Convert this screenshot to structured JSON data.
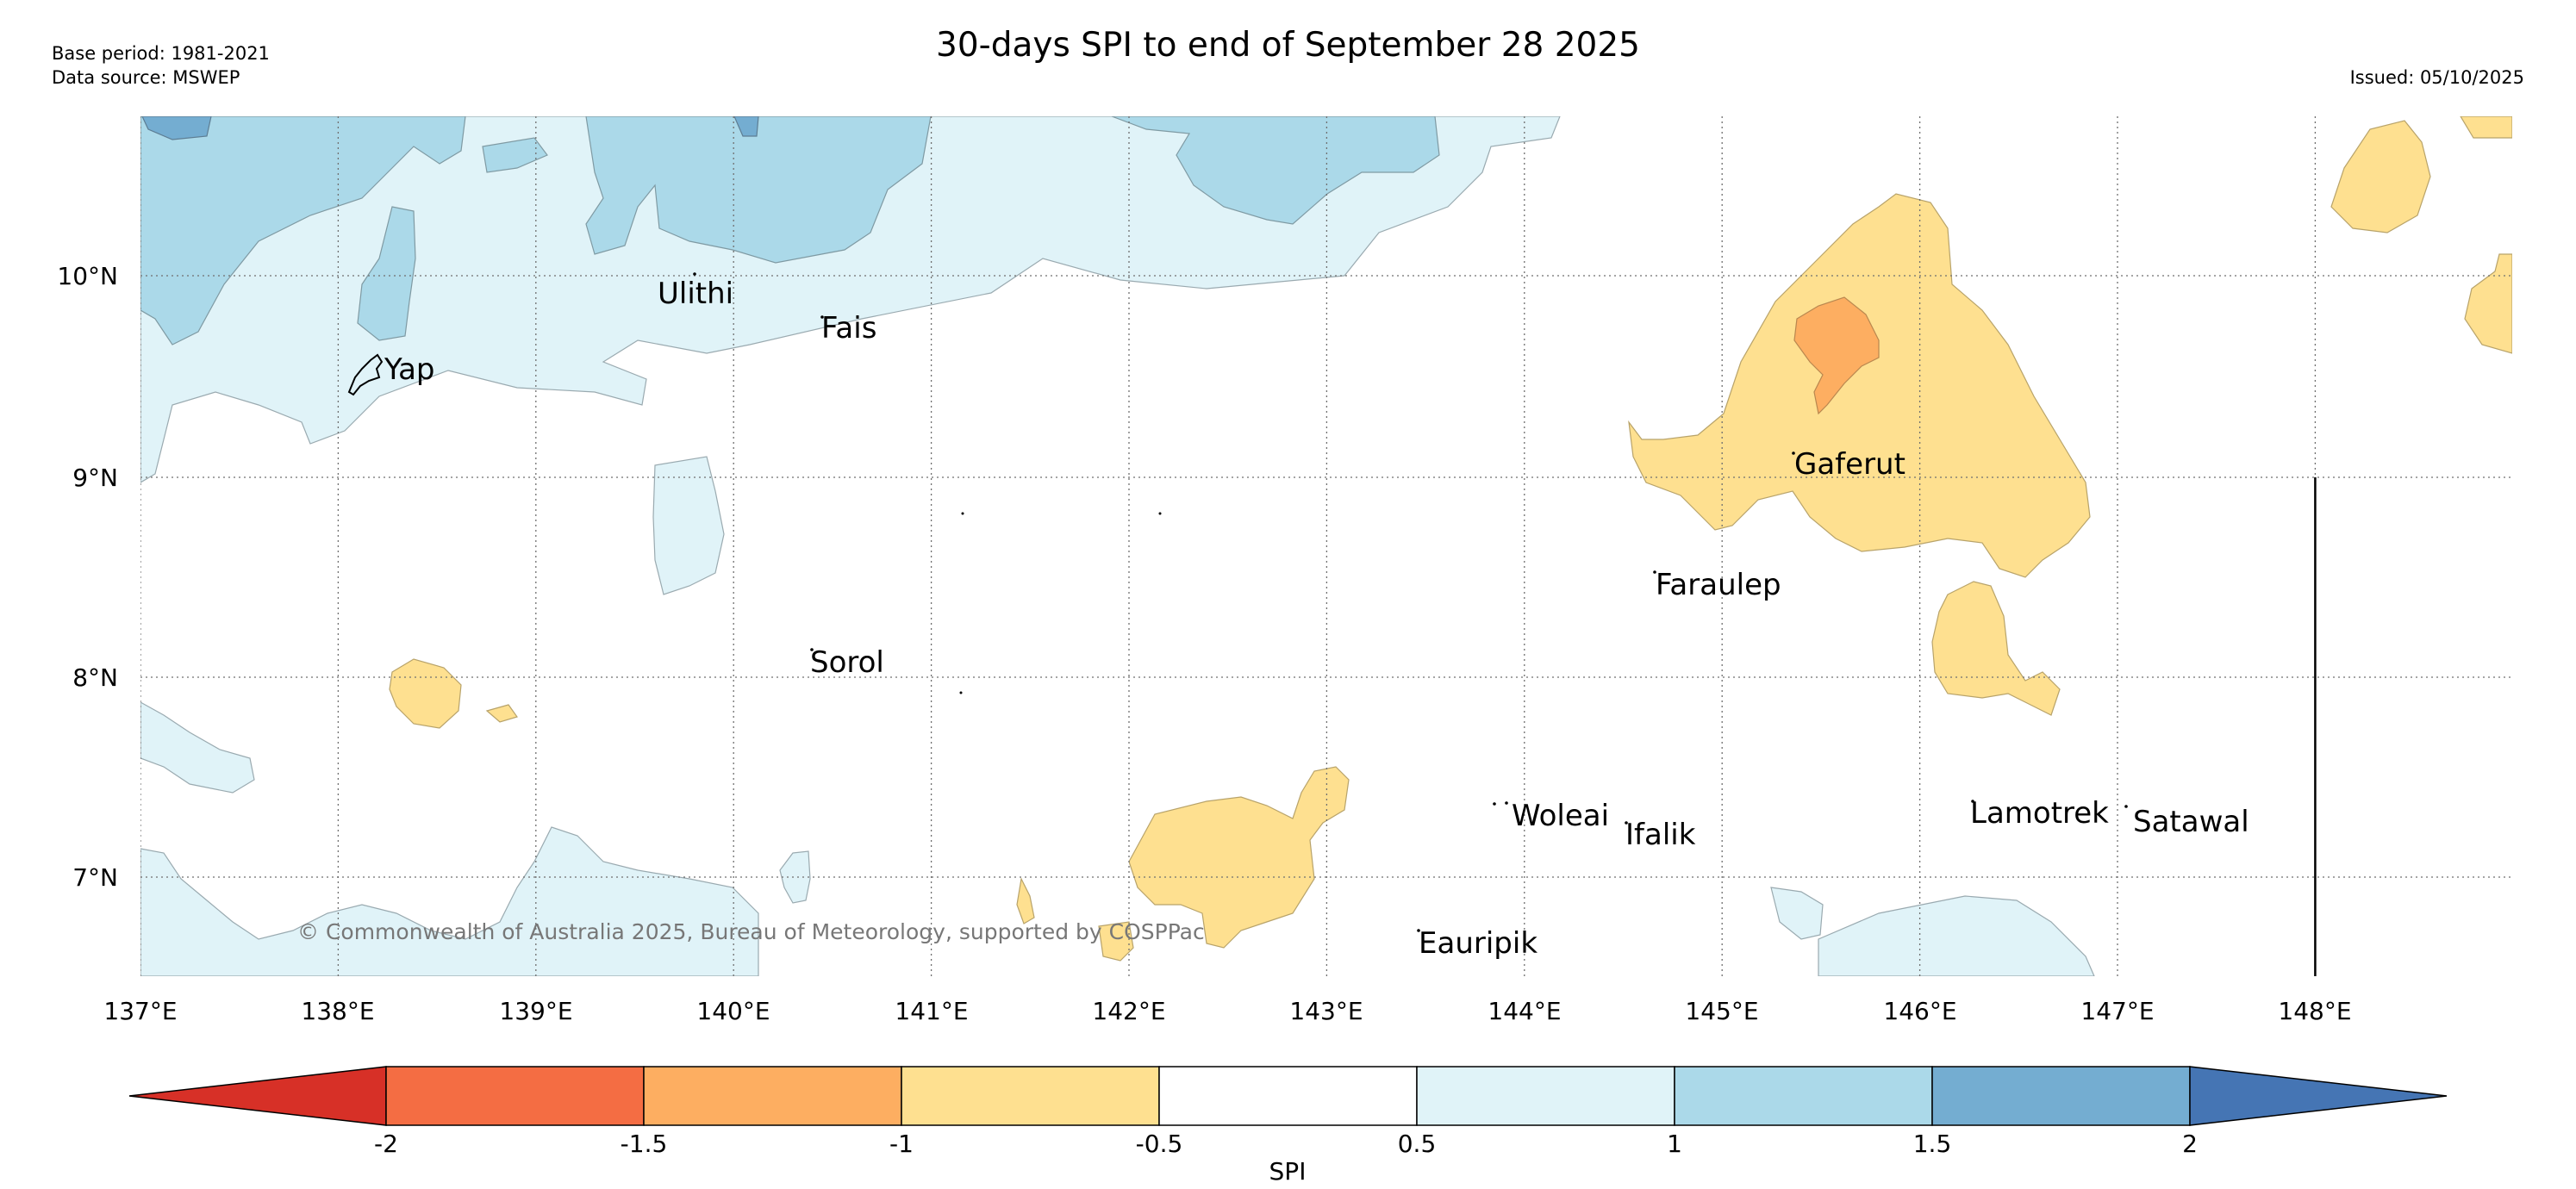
{
  "header": {
    "title": "30-days SPI to end of September 28 2025",
    "base_period": "Base period: 1981-2021",
    "data_source": "Data source: MSWEP",
    "issued": "Issued: 05/10/2025"
  },
  "map": {
    "copyright": "© Commonwealth of Australia 2025, Bureau of Meteorology, supported by COSPPac",
    "lon_labels": [
      "137°E",
      "138°E",
      "139°E",
      "140°E",
      "141°E",
      "142°E",
      "143°E",
      "144°E",
      "145°E",
      "146°E",
      "147°E",
      "148°E"
    ],
    "lat_labels": [
      "10°N",
      "9°N",
      "8°N",
      "7°N"
    ],
    "places": [
      "Yap",
      "Ulithi",
      "Fais",
      "Sorol",
      "Gaferut",
      "Faraulep",
      "Woleai",
      "Ifalik",
      "Eauripik",
      "Lamotrek",
      "Satawal"
    ]
  },
  "legend": {
    "title": "SPI",
    "ticks": [
      "-2",
      "-1.5",
      "-1",
      "-0.5",
      "0.5",
      "1",
      "1.5",
      "2"
    ],
    "colors": {
      "lt_minus2": "#d73027",
      "minus2_minus1_5": "#f46d43",
      "minus1_5_minus1": "#fdae61",
      "minus1_minus0_5": "#fee090",
      "neutral": "#ffffff",
      "p0_5_1": "#e0f3f8",
      "p1_1_5": "#abd9e9",
      "p1_5_2": "#74add1",
      "gt_2": "#4575b4"
    }
  }
}
